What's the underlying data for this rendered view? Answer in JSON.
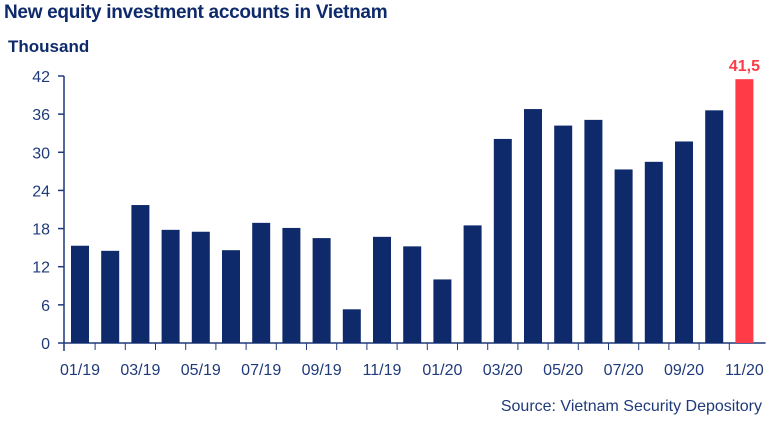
{
  "chart_data": {
    "type": "bar",
    "title": "New equity investment accounts in Vietnam",
    "unit_label": "Thousand",
    "source": "Source: Vietnam Security Depository",
    "ylim": [
      0,
      42
    ],
    "yticks": [
      "0",
      "6",
      "12",
      "18",
      "24",
      "30",
      "36",
      "42"
    ],
    "ytick_values": [
      0,
      6,
      12,
      18,
      24,
      30,
      36,
      42
    ],
    "categories": [
      "01/19",
      "02/19",
      "03/19",
      "04/19",
      "05/19",
      "06/19",
      "07/19",
      "08/19",
      "09/19",
      "10/19",
      "11/19",
      "12/19",
      "01/20",
      "02/20",
      "03/20",
      "04/20",
      "05/20",
      "06/20",
      "07/20",
      "08/20",
      "09/20",
      "10/20",
      "11/20"
    ],
    "xtick_labels": [
      "01/19",
      "03/19",
      "05/19",
      "07/19",
      "09/19",
      "11/19",
      "01/20",
      "03/20",
      "05/20",
      "07/20",
      "09/20",
      "11/20"
    ],
    "values": [
      15.3,
      14.5,
      21.7,
      17.8,
      17.5,
      14.6,
      18.9,
      18.1,
      16.5,
      5.3,
      16.7,
      15.2,
      10.0,
      18.5,
      32.1,
      36.8,
      34.2,
      35.1,
      27.3,
      28.5,
      31.7,
      36.6,
      41.5
    ],
    "highlight_index": 22,
    "highlight_label": "41,5",
    "colors": {
      "bar": "#0e2a6b",
      "highlight": "#ff3b47",
      "axis": "#1f3a7a",
      "text": "#0e2a6b"
    },
    "grid": false
  }
}
